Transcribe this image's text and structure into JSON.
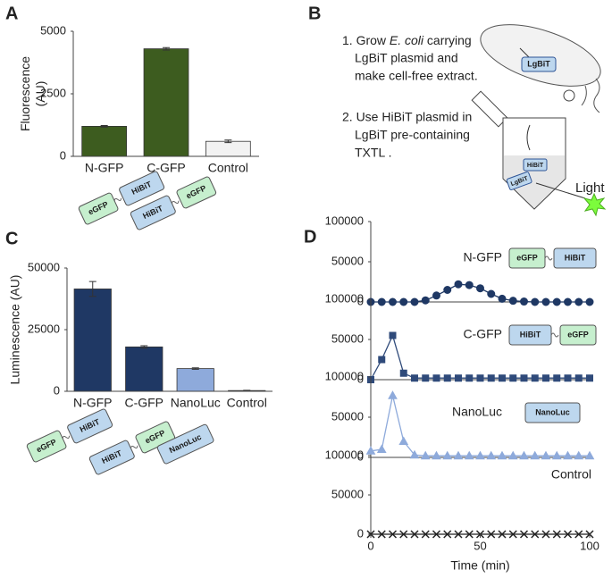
{
  "panel_labels": [
    "A",
    "B",
    "C",
    "D"
  ],
  "diagram_b": {
    "step1_lines": [
      [
        "1. Grow ",
        "E. coli",
        " carrying"
      ],
      [
        "LgBiT plasmid and"
      ],
      [
        "make cell-free extract."
      ]
    ],
    "step2_lines": [
      [
        "2. Use HiBiT plasmid in"
      ],
      [
        "LgBiT pre-containing"
      ],
      [
        "TXTL ."
      ]
    ],
    "cell_label": "LgBiT",
    "tube_labels": [
      "HiBiT",
      "LgBiT"
    ],
    "light": "Light"
  },
  "chart_data": [
    {
      "type": "bar",
      "categories": [
        "N-GFP",
        "C-GFP",
        "Control"
      ],
      "values": [
        1200,
        4300,
        600
      ],
      "errors": [
        30,
        50,
        50
      ],
      "colors": [
        "#3d5c1f",
        "#3d5c1f",
        "#f2f2f2"
      ],
      "ylabel": [
        "Fluorescence",
        "(AU)"
      ],
      "ylim": [
        0,
        5000
      ],
      "yticks": [
        0,
        2500,
        5000
      ],
      "constructs": [
        [
          {
            "text": "eGFP",
            "color": "#c6efce"
          },
          {
            "text": "HiBiT",
            "color": "#bdd7ee"
          }
        ],
        [
          {
            "text": "HiBiT",
            "color": "#bdd7ee"
          },
          {
            "text": "eGFP",
            "color": "#c6efce"
          }
        ]
      ]
    },
    {
      "type": "bar",
      "categories": [
        "N-GFP",
        "C-GFP",
        "NanoLuc",
        "Control"
      ],
      "values": [
        41500,
        18000,
        9200,
        300
      ],
      "errors": [
        3000,
        500,
        300,
        100
      ],
      "colors": [
        "#1f3864",
        "#1f3864",
        "#8eaadb",
        "#f2f2f2"
      ],
      "ylabel": [
        "Luminescence (AU)"
      ],
      "ylim": [
        0,
        50000
      ],
      "yticks": [
        0,
        25000,
        50000
      ],
      "constructs": [
        [
          {
            "text": "eGFP",
            "color": "#c6efce"
          },
          {
            "text": "HiBiT",
            "color": "#bdd7ee"
          }
        ],
        [
          {
            "text": "HiBiT",
            "color": "#bdd7ee"
          },
          {
            "text": "eGFP",
            "color": "#c6efce"
          }
        ],
        [
          {
            "text": "NanoLuc",
            "color": "#bdd7ee"
          }
        ]
      ]
    },
    {
      "type": "line",
      "label": "N-GFP",
      "marker": "circle",
      "color": "#1f3864",
      "x": [
        0,
        5,
        10,
        15,
        20,
        25,
        30,
        35,
        40,
        45,
        50,
        55,
        60,
        65,
        70,
        75,
        80,
        85,
        90,
        95,
        100
      ],
      "values": [
        0,
        0,
        0,
        0,
        0,
        2000,
        8000,
        15000,
        22000,
        21000,
        17000,
        10000,
        4000,
        1500,
        500,
        0,
        0,
        0,
        0,
        0,
        0
      ],
      "xlim": [
        0,
        100
      ],
      "ylim": [
        0,
        100000
      ],
      "yticks": [
        0,
        50000,
        100000
      ],
      "constructs": [
        [
          {
            "text": "eGFP",
            "color": "#c6efce"
          },
          {
            "text": "HiBiT",
            "color": "#bdd7ee"
          }
        ]
      ]
    },
    {
      "type": "line",
      "label": "C-GFP",
      "marker": "square",
      "color": "#2f4a7a",
      "x": [
        0,
        5,
        10,
        15,
        20,
        25,
        30,
        35,
        40,
        45,
        50,
        55,
        60,
        65,
        70,
        75,
        80,
        85,
        90,
        95,
        100
      ],
      "values": [
        0,
        25000,
        55000,
        8000,
        2000,
        2000,
        2000,
        2000,
        2000,
        2000,
        2000,
        2000,
        2000,
        2000,
        2000,
        2000,
        2000,
        2000,
        2000,
        2000,
        2000
      ],
      "xlim": [
        0,
        100
      ],
      "ylim": [
        0,
        100000
      ],
      "yticks": [
        0,
        50000,
        100000
      ],
      "constructs": [
        [
          {
            "text": "HiBiT",
            "color": "#bdd7ee"
          },
          {
            "text": "eGFP",
            "color": "#c6efce"
          }
        ]
      ]
    },
    {
      "type": "line",
      "label": "NanoLuc",
      "marker": "triangle",
      "color": "#8eaadb",
      "x": [
        0,
        5,
        10,
        15,
        20,
        25,
        30,
        35,
        40,
        45,
        50,
        55,
        60,
        65,
        70,
        75,
        80,
        85,
        90,
        95,
        100
      ],
      "values": [
        8000,
        10000,
        77000,
        20000,
        3000,
        2000,
        2000,
        2000,
        2000,
        2000,
        2000,
        2000,
        2000,
        2000,
        2000,
        2000,
        2000,
        2000,
        2000,
        2000,
        2000
      ],
      "xlim": [
        0,
        100
      ],
      "ylim": [
        0,
        100000
      ],
      "yticks": [
        0,
        50000,
        100000
      ],
      "constructs": [
        [
          {
            "text": "NanoLuc",
            "color": "#bdd7ee"
          }
        ]
      ]
    },
    {
      "type": "line",
      "label": "Control",
      "marker": "x",
      "color": "#222222",
      "x": [
        0,
        5,
        10,
        15,
        20,
        25,
        30,
        35,
        40,
        45,
        50,
        55,
        60,
        65,
        70,
        75,
        80,
        85,
        90,
        95,
        100
      ],
      "values": [
        0,
        0,
        0,
        0,
        0,
        0,
        0,
        0,
        0,
        0,
        0,
        0,
        0,
        0,
        0,
        0,
        0,
        0,
        0,
        0,
        0
      ],
      "xlim": [
        0,
        100
      ],
      "ylim": [
        0,
        100000
      ],
      "yticks": [
        0,
        50000,
        100000
      ],
      "xticks": [
        0,
        50,
        100
      ],
      "xlabel": "Time (min)"
    }
  ]
}
